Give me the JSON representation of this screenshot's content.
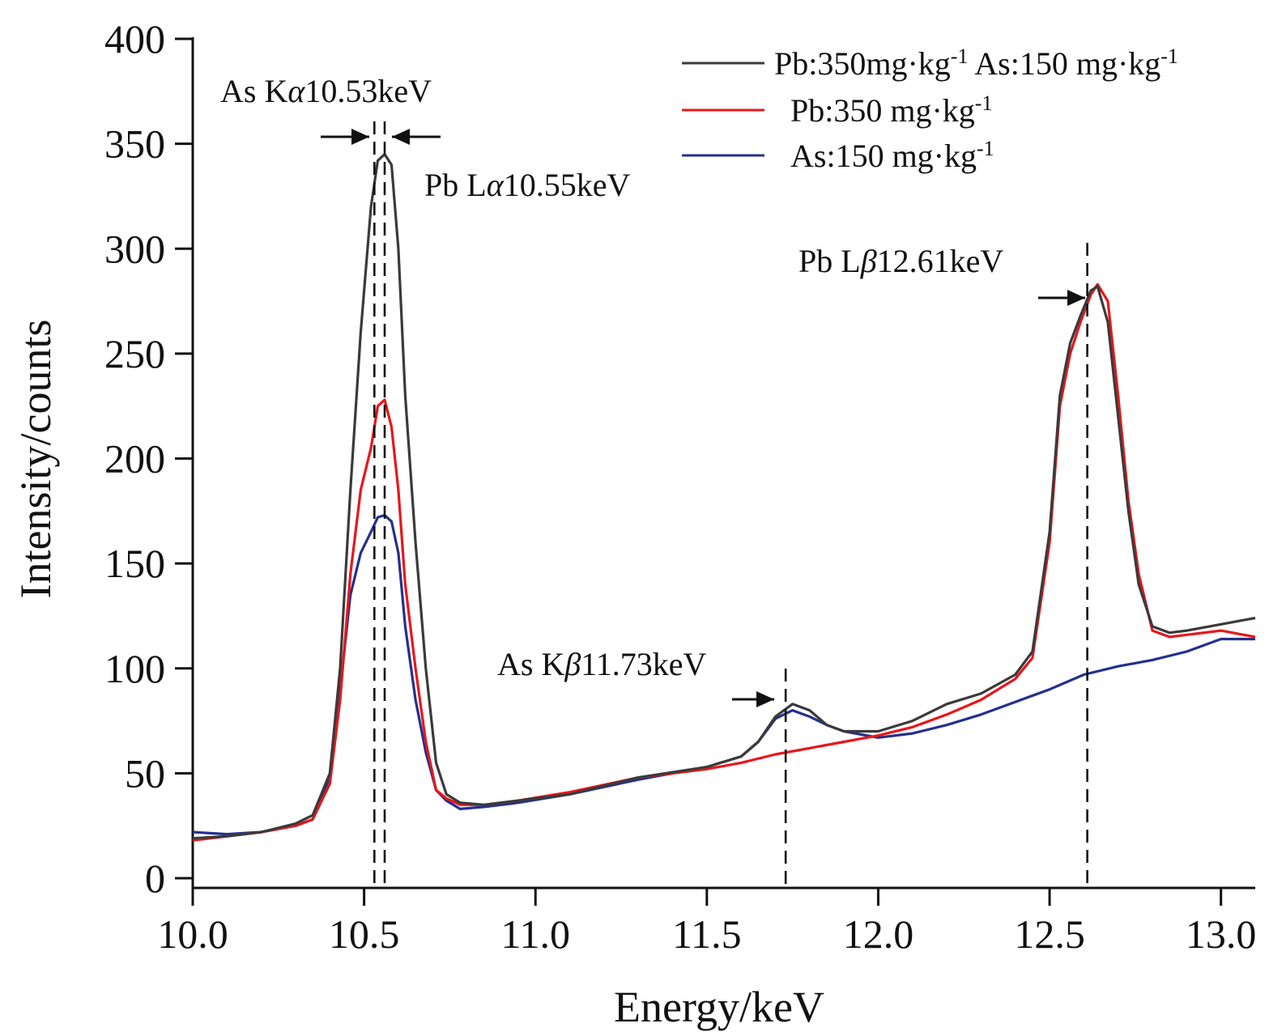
{
  "chart_data": {
    "type": "line",
    "xlabel": "Energy/keV",
    "ylabel": "Intensity/counts",
    "xlim": [
      10.0,
      13.1
    ],
    "ylim": [
      0,
      400
    ],
    "x_ticks": [
      10.0,
      10.5,
      11.0,
      11.5,
      12.0,
      12.5,
      13.0
    ],
    "x_tick_labels": [
      "10.0",
      "10.5",
      "11.0",
      "11.5",
      "12.0",
      "12.5",
      "13.0"
    ],
    "y_ticks": [
      0,
      50,
      100,
      150,
      200,
      250,
      300,
      350,
      400
    ],
    "y_tick_labels": [
      "0",
      "50",
      "100",
      "150",
      "200",
      "250",
      "300",
      "350",
      "400"
    ],
    "grid": false,
    "legend_position": "top-right",
    "series": [
      {
        "name": "Pb:350mg·kg-1 As:150 mg·kg-1",
        "color": "#3a3a3a",
        "x": [
          10.0,
          10.1,
          10.2,
          10.3,
          10.35,
          10.4,
          10.43,
          10.46,
          10.49,
          10.52,
          10.54,
          10.56,
          10.58,
          10.6,
          10.62,
          10.65,
          10.68,
          10.71,
          10.74,
          10.78,
          10.85,
          10.95,
          11.1,
          11.3,
          11.5,
          11.6,
          11.65,
          11.7,
          11.75,
          11.8,
          11.85,
          11.9,
          12.0,
          12.1,
          12.2,
          12.3,
          12.4,
          12.45,
          12.5,
          12.53,
          12.56,
          12.59,
          12.62,
          12.64,
          12.67,
          12.7,
          12.73,
          12.76,
          12.8,
          12.85,
          12.9,
          13.0,
          13.1
        ],
        "y": [
          19,
          20,
          22,
          26,
          30,
          50,
          100,
          185,
          260,
          320,
          342,
          345,
          340,
          300,
          230,
          160,
          100,
          55,
          40,
          36,
          35,
          37,
          40,
          48,
          53,
          58,
          65,
          77,
          83,
          80,
          73,
          70,
          70,
          75,
          83,
          88,
          97,
          108,
          165,
          230,
          255,
          268,
          280,
          282,
          265,
          220,
          175,
          140,
          120,
          117,
          118,
          121,
          124
        ]
      },
      {
        "name": "Pb:350 mg·kg-1",
        "color": "#e8161b",
        "x": [
          10.0,
          10.1,
          10.2,
          10.3,
          10.35,
          10.4,
          10.43,
          10.46,
          10.49,
          10.52,
          10.54,
          10.56,
          10.58,
          10.6,
          10.62,
          10.65,
          10.68,
          10.71,
          10.74,
          10.78,
          10.85,
          10.95,
          11.1,
          11.3,
          11.5,
          11.6,
          11.7,
          11.8,
          11.9,
          12.0,
          12.1,
          12.2,
          12.3,
          12.4,
          12.45,
          12.5,
          12.53,
          12.56,
          12.59,
          12.62,
          12.64,
          12.67,
          12.7,
          12.73,
          12.76,
          12.8,
          12.85,
          12.9,
          13.0,
          13.1
        ],
        "y": [
          18,
          20,
          22,
          25,
          28,
          45,
          85,
          145,
          185,
          205,
          225,
          228,
          215,
          185,
          140,
          100,
          65,
          42,
          38,
          35,
          35,
          37,
          41,
          48,
          52,
          55,
          59,
          62,
          65,
          68,
          72,
          78,
          85,
          95,
          105,
          160,
          225,
          250,
          265,
          278,
          283,
          275,
          230,
          180,
          145,
          118,
          115,
          116,
          118,
          115
        ]
      },
      {
        "name": "As:150 mg·kg-1",
        "color": "#23308e",
        "x": [
          10.0,
          10.1,
          10.2,
          10.3,
          10.35,
          10.4,
          10.43,
          10.46,
          10.49,
          10.52,
          10.54,
          10.56,
          10.58,
          10.6,
          10.62,
          10.65,
          10.68,
          10.71,
          10.74,
          10.78,
          10.85,
          10.95,
          11.1,
          11.3,
          11.5,
          11.6,
          11.65,
          11.7,
          11.75,
          11.8,
          11.85,
          11.9,
          12.0,
          12.1,
          12.2,
          12.3,
          12.4,
          12.5,
          12.6,
          12.7,
          12.8,
          12.9,
          13.0,
          13.1
        ],
        "y": [
          22,
          21,
          22,
          25,
          28,
          48,
          90,
          135,
          155,
          165,
          172,
          173,
          170,
          155,
          120,
          85,
          60,
          42,
          37,
          33,
          34,
          36,
          40,
          47,
          53,
          58,
          65,
          76,
          80,
          77,
          73,
          70,
          67,
          69,
          73,
          78,
          84,
          90,
          97,
          101,
          104,
          108,
          114,
          114
        ]
      }
    ],
    "annotations": [
      {
        "text": "As Kα10.53keV",
        "x": 10.53
      },
      {
        "text": "Pb Lα10.55keV",
        "x": 10.56
      },
      {
        "text": "As Kβ11.73keV",
        "x": 11.73
      },
      {
        "text": "Pb Lβ12.61keV",
        "x": 12.61
      }
    ]
  }
}
